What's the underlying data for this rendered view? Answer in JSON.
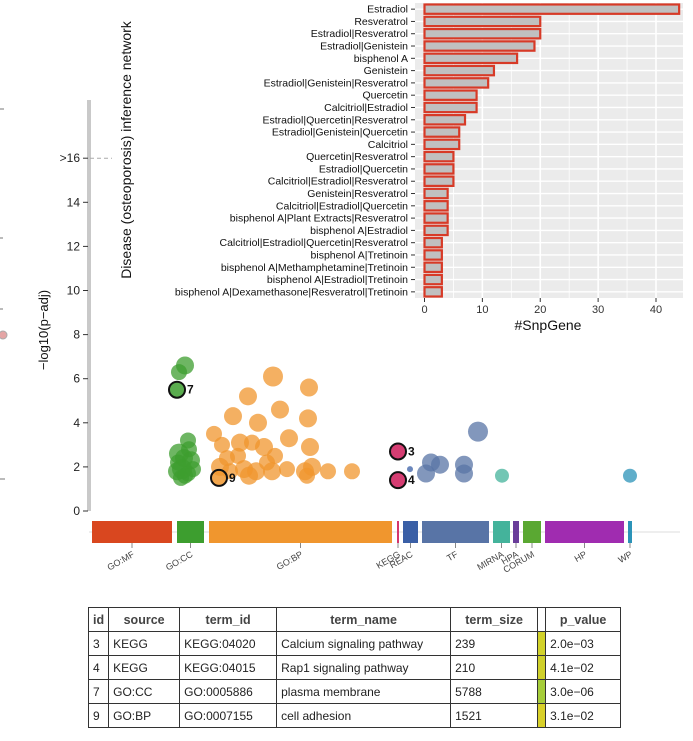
{
  "bar_chart_data": {
    "type": "bar",
    "orientation": "horizontal",
    "ylabel": "Disease (osteoporosis) inference network",
    "xlabel": "#SnpGene",
    "xlim": [
      0,
      45
    ],
    "xticks": [
      0,
      10,
      20,
      30,
      40
    ],
    "categories": [
      "Estradiol",
      "Resveratrol",
      "Estradiol|Resveratrol",
      "Estradiol|Genistein",
      "bisphenol A",
      "Genistein",
      "Estradiol|Genistein|Resveratrol",
      "Quercetin",
      "Calcitriol|Estradiol",
      "Estradiol|Quercetin|Resveratrol",
      "Estradiol|Genistein|Quercetin",
      "Calcitriol",
      "Quercetin|Resveratrol",
      "Estradiol|Quercetin",
      "Calcitriol|Estradiol|Resveratrol",
      "Genistein|Resveratrol",
      "Calcitriol|Estradiol|Quercetin",
      "bisphenol A|Plant Extracts|Resveratrol",
      "bisphenol A|Estradiol",
      "Calcitriol|Estradiol|Quercetin|Resveratrol",
      "bisphenol A|Tretinoin",
      "bisphenol A|Methamphetamine|Tretinoin",
      "bisphenol A|Estradiol|Tretinoin",
      "bisphenol A|Dexamethasone|Resveratrol|Tretinoin"
    ],
    "values": [
      44,
      20,
      20,
      19,
      16,
      12,
      11,
      9,
      9,
      7,
      6,
      6,
      5,
      5,
      5,
      4,
      4,
      4,
      4,
      3,
      3,
      3,
      3,
      3
    ],
    "bar_fill": "#c0c0c0",
    "bar_outline": "#d73a27",
    "panel_bg": "#ebebeb"
  },
  "manhattan_data": {
    "type": "scatter",
    "ylabel": "−log10(p−adj)",
    "yticks": [
      0,
      2,
      4,
      6,
      8,
      10,
      12,
      14,
      ">16"
    ],
    "threshold_label": ">16",
    "sources": [
      {
        "name": "GO:MF",
        "color": "#d9471f",
        "start": 0,
        "end": 80
      },
      {
        "name": "GO:CC",
        "color": "#3d9e2f",
        "start": 85,
        "end": 112
      },
      {
        "name": "GO:BP",
        "color": "#f0962e",
        "start": 117,
        "end": 300
      },
      {
        "name": "KEGG",
        "color": "#d4366c",
        "start": 305,
        "end": 307
      },
      {
        "name": "REAC",
        "color": "#3a5fa6",
        "start": 311,
        "end": 326
      },
      {
        "name": "TF",
        "color": "#5874a6",
        "start": 330,
        "end": 397
      },
      {
        "name": "MIRNA",
        "color": "#44b39b",
        "start": 401,
        "end": 418
      },
      {
        "name": "HPA",
        "color": "#6a3d9a",
        "start": 421,
        "end": 427
      },
      {
        "name": "CORUM",
        "color": "#5aa832",
        "start": 431,
        "end": 449
      },
      {
        "name": "HP",
        "color": "#a02cb0",
        "start": 453,
        "end": 532
      },
      {
        "name": "WP",
        "color": "#2b93b8",
        "start": 536,
        "end": 540
      }
    ],
    "points": [
      {
        "x": 93,
        "y": 6.6,
        "s": 9,
        "g": "GO:CC"
      },
      {
        "x": 87,
        "y": 6.3,
        "s": 8,
        "g": "GO:CC"
      },
      {
        "x": 96,
        "y": 3.2,
        "s": 8,
        "g": "GO:CC"
      },
      {
        "x": 87,
        "y": 2.6,
        "s": 10,
        "g": "GO:CC"
      },
      {
        "x": 92,
        "y": 2.4,
        "s": 9,
        "g": "GO:CC"
      },
      {
        "x": 99,
        "y": 2.3,
        "s": 9,
        "g": "GO:CC"
      },
      {
        "x": 85,
        "y": 1.8,
        "s": 9,
        "g": "GO:CC"
      },
      {
        "x": 90,
        "y": 1.9,
        "s": 10,
        "g": "GO:CC"
      },
      {
        "x": 96,
        "y": 1.7,
        "s": 8,
        "g": "GO:CC"
      },
      {
        "x": 89,
        "y": 1.5,
        "s": 8,
        "g": "GO:CC"
      },
      {
        "x": 101,
        "y": 1.9,
        "s": 8,
        "g": "GO:CC"
      },
      {
        "x": 86,
        "y": 2.2,
        "s": 8,
        "g": "GO:CC"
      },
      {
        "x": 93,
        "y": 1.6,
        "s": 8,
        "g": "GO:CC"
      },
      {
        "x": 97,
        "y": 2.8,
        "s": 8,
        "g": "GO:CC"
      },
      {
        "x": 181,
        "y": 6.1,
        "s": 10,
        "g": "GO:BP"
      },
      {
        "x": 156,
        "y": 5.2,
        "s": 9,
        "g": "GO:BP"
      },
      {
        "x": 217,
        "y": 5.6,
        "s": 9,
        "g": "GO:BP"
      },
      {
        "x": 141,
        "y": 4.3,
        "s": 9,
        "g": "GO:BP"
      },
      {
        "x": 188,
        "y": 4.6,
        "s": 9,
        "g": "GO:BP"
      },
      {
        "x": 216,
        "y": 4.2,
        "s": 9,
        "g": "GO:BP"
      },
      {
        "x": 166,
        "y": 4.0,
        "s": 9,
        "g": "GO:BP"
      },
      {
        "x": 122,
        "y": 3.5,
        "s": 8,
        "g": "GO:BP"
      },
      {
        "x": 130,
        "y": 3.0,
        "s": 8,
        "g": "GO:BP"
      },
      {
        "x": 148,
        "y": 3.1,
        "s": 9,
        "g": "GO:BP"
      },
      {
        "x": 160,
        "y": 3.1,
        "s": 8,
        "g": "GO:BP"
      },
      {
        "x": 172,
        "y": 2.9,
        "s": 9,
        "g": "GO:BP"
      },
      {
        "x": 197,
        "y": 3.3,
        "s": 9,
        "g": "GO:BP"
      },
      {
        "x": 135,
        "y": 2.4,
        "s": 8,
        "g": "GO:BP"
      },
      {
        "x": 146,
        "y": 2.5,
        "s": 8,
        "g": "GO:BP"
      },
      {
        "x": 183,
        "y": 2.5,
        "s": 8,
        "g": "GO:BP"
      },
      {
        "x": 218,
        "y": 2.9,
        "s": 9,
        "g": "GO:BP"
      },
      {
        "x": 128,
        "y": 2.0,
        "s": 9,
        "g": "GO:BP"
      },
      {
        "x": 138,
        "y": 1.8,
        "s": 8,
        "g": "GO:BP"
      },
      {
        "x": 152,
        "y": 1.9,
        "s": 9,
        "g": "GO:BP"
      },
      {
        "x": 164,
        "y": 1.8,
        "s": 9,
        "g": "GO:BP"
      },
      {
        "x": 180,
        "y": 1.8,
        "s": 9,
        "g": "GO:BP"
      },
      {
        "x": 195,
        "y": 1.9,
        "s": 8,
        "g": "GO:BP"
      },
      {
        "x": 213,
        "y": 1.8,
        "s": 9,
        "g": "GO:BP"
      },
      {
        "x": 220,
        "y": 2.0,
        "s": 9,
        "g": "GO:BP"
      },
      {
        "x": 236,
        "y": 1.8,
        "s": 8,
        "g": "GO:BP"
      },
      {
        "x": 260,
        "y": 1.8,
        "s": 8,
        "g": "GO:BP"
      },
      {
        "x": 157,
        "y": 1.6,
        "s": 9,
        "g": "GO:BP"
      },
      {
        "x": 175,
        "y": 2.2,
        "s": 8,
        "g": "GO:BP"
      },
      {
        "x": 215,
        "y": 1.6,
        "s": 8,
        "g": "GO:BP"
      },
      {
        "x": 306,
        "y": 2.7,
        "s": 8,
        "g": "KEGG"
      },
      {
        "x": 306,
        "y": 1.4,
        "s": 8,
        "g": "KEGG"
      },
      {
        "x": 318,
        "y": 1.9,
        "s": 3,
        "g": "REAC"
      },
      {
        "x": 339,
        "y": 2.2,
        "s": 9,
        "g": "TF"
      },
      {
        "x": 348,
        "y": 2.1,
        "s": 9,
        "g": "TF"
      },
      {
        "x": 334,
        "y": 1.7,
        "s": 9,
        "g": "TF"
      },
      {
        "x": 372,
        "y": 2.1,
        "s": 9,
        "g": "TF"
      },
      {
        "x": 372,
        "y": 1.7,
        "s": 9,
        "g": "TF"
      },
      {
        "x": 386,
        "y": 3.6,
        "s": 10,
        "g": "TF"
      },
      {
        "x": 410,
        "y": 1.6,
        "s": 7,
        "g": "MIRNA"
      },
      {
        "x": 538,
        "y": 1.6,
        "s": 7,
        "g": "WP"
      }
    ],
    "highlights": [
      {
        "id": "3",
        "x": 306,
        "y": 2.7,
        "g": "KEGG"
      },
      {
        "id": "4",
        "x": 306,
        "y": 1.4,
        "g": "KEGG"
      },
      {
        "id": "7",
        "x": 85,
        "y": 5.5,
        "g": "GO:CC"
      },
      {
        "id": "9",
        "x": 127,
        "y": 1.5,
        "g": "GO:BP"
      }
    ]
  },
  "table": {
    "headers": [
      "id",
      "source",
      "term_id",
      "term_name",
      "term_size",
      "",
      "p_value"
    ],
    "rows": [
      {
        "id": "3",
        "source": "KEGG",
        "term_id": "KEGG:04020",
        "term_name": "Calcium signaling pathway",
        "term_size": "239",
        "shade": "#d2d22a",
        "p_value": "2.0e−03"
      },
      {
        "id": "4",
        "source": "KEGG",
        "term_id": "KEGG:04015",
        "term_name": "Rap1 signaling pathway",
        "term_size": "210",
        "shade": "#cfd02a",
        "p_value": "4.1e−02"
      },
      {
        "id": "7",
        "source": "GO:CC",
        "term_id": "GO:0005886",
        "term_name": "plasma membrane",
        "term_size": "5788",
        "shade": "#a6cd3a",
        "p_value": "3.0e−06"
      },
      {
        "id": "9",
        "source": "GO:BP",
        "term_id": "GO:0007155",
        "term_name": "cell adhesion",
        "term_size": "1521",
        "shade": "#d8d02a",
        "p_value": "3.1e−02"
      }
    ]
  }
}
